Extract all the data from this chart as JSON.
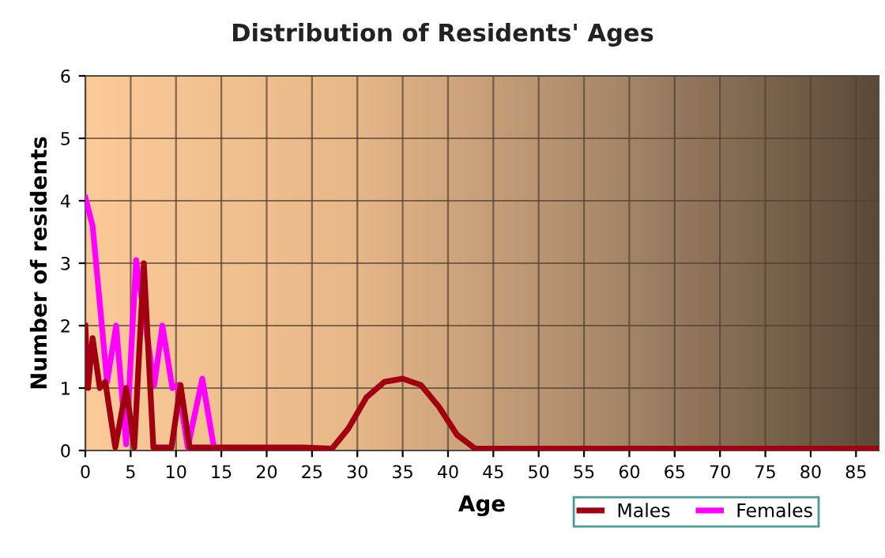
{
  "chart_data": {
    "type": "line",
    "title": "Distribution of Residents' Ages",
    "xlabel": "Age",
    "ylabel": "Number of residents",
    "xlim": [
      0,
      87.5
    ],
    "xticks": [
      0,
      5,
      10,
      15,
      20,
      25,
      30,
      35,
      40,
      45,
      50,
      55,
      60,
      65,
      70,
      75,
      80,
      85
    ],
    "ylim": [
      0,
      6
    ],
    "yticks": [
      0,
      1,
      2,
      3,
      4,
      5,
      6
    ],
    "grid": true,
    "legend": "bottom",
    "series": [
      {
        "name": "Males",
        "color": "#a00010",
        "x": [
          0,
          0.3,
          0.8,
          1.6,
          2.2,
          3.3,
          4.5,
          5.4,
          6.45,
          7.5,
          8.5,
          9.5,
          10.5,
          11.5,
          13,
          15,
          20,
          24,
          27.2,
          29,
          31,
          33,
          35,
          37,
          39,
          41,
          43,
          50,
          60,
          70,
          80,
          87.5
        ],
        "values": [
          2.0,
          1.0,
          1.8,
          1.0,
          1.1,
          0.05,
          1.0,
          0.05,
          3.0,
          0.05,
          0.05,
          0.05,
          1.05,
          0.05,
          0.05,
          0.05,
          0.05,
          0.05,
          0.03,
          0.35,
          0.85,
          1.1,
          1.15,
          1.05,
          0.7,
          0.25,
          0.03,
          0.03,
          0.03,
          0.03,
          0.03,
          0.03
        ]
      },
      {
        "name": "Females",
        "color": "#ff00ff",
        "x": [
          0,
          0.8,
          2.4,
          3.4,
          4.5,
          5.6,
          7.6,
          8.5,
          9.6,
          10.2,
          11.3,
          12.9,
          14.2
        ],
        "values": [
          4.05,
          3.6,
          1.1,
          2.0,
          0.1,
          3.05,
          1.05,
          2.0,
          1.0,
          1.05,
          0.05,
          1.15,
          0.03
        ]
      }
    ]
  }
}
